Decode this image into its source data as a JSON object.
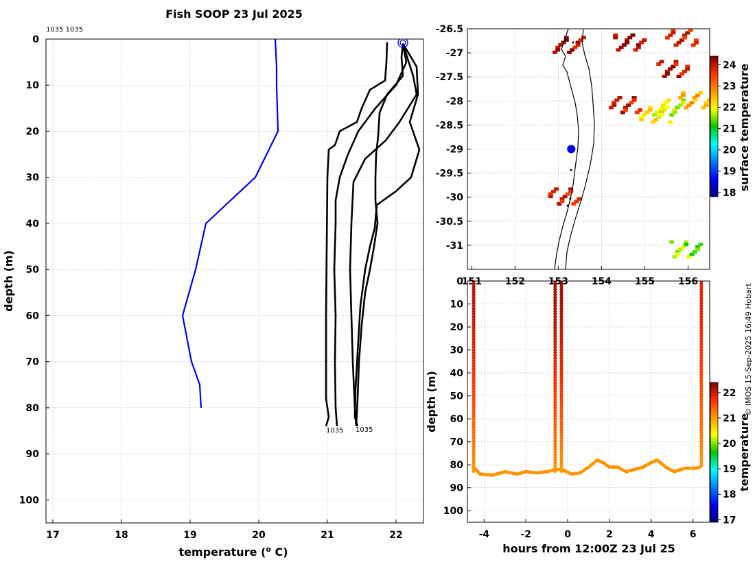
{
  "chart_data": [
    {
      "type": "line",
      "title": "Fish SOOP 23 Jul 2025",
      "subtitle": "1035 1035",
      "xlabel": "temperature (o C)",
      "xlabel_main": "temperature (",
      "xlabel_sup": "o",
      "xlabel_end": " C)",
      "ylabel": "depth (m)",
      "xlim": [
        16.9,
        22.4
      ],
      "ylim": [
        105,
        0
      ],
      "xticks": [
        "17",
        "18",
        "19",
        "20",
        "21",
        "22"
      ],
      "xtick_values": [
        17,
        18,
        19,
        20,
        21,
        22
      ],
      "yticks": [
        "0",
        "10",
        "20",
        "30",
        "40",
        "50",
        "60",
        "70",
        "80",
        "90",
        "100"
      ],
      "ytick_values": [
        0,
        10,
        20,
        30,
        40,
        50,
        60,
        70,
        80,
        90,
        100
      ],
      "grid": true,
      "series": [
        {
          "color": "#0000ee",
          "points": [
            [
              20.24,
              0
            ],
            [
              20.26,
              6
            ],
            [
              20.26,
              10
            ],
            [
              20.28,
              20
            ],
            [
              19.95,
              30
            ],
            [
              19.23,
              40
            ],
            [
              19.08,
              50
            ],
            [
              18.89,
              60
            ],
            [
              19.02,
              70
            ],
            [
              19.14,
              75
            ],
            [
              19.16,
              80
            ]
          ]
        },
        {
          "color": "#000000",
          "points": [
            [
              21.87,
              0.7
            ],
            [
              21.86,
              5
            ],
            [
              21.84,
              9
            ],
            [
              21.62,
              11
            ],
            [
              21.5,
              15
            ],
            [
              21.43,
              18
            ],
            [
              21.18,
              20
            ],
            [
              21.11,
              23
            ],
            [
              21.02,
              24
            ],
            [
              21.0,
              30
            ],
            [
              20.99,
              45
            ],
            [
              20.98,
              60
            ],
            [
              20.98,
              78
            ],
            [
              21.02,
              82
            ],
            [
              20.98,
              84
            ]
          ]
        },
        {
          "color": "#000000",
          "points": [
            [
              22.1,
              1
            ],
            [
              22.15,
              5
            ],
            [
              22.0,
              10
            ],
            [
              21.7,
              15
            ],
            [
              21.45,
              20
            ],
            [
              21.3,
              25
            ],
            [
              21.18,
              30
            ],
            [
              21.12,
              35
            ],
            [
              21.12,
              40
            ],
            [
              21.1,
              50
            ],
            [
              21.12,
              60
            ],
            [
              21.11,
              70
            ],
            [
              21.12,
              80
            ],
            [
              21.14,
              84
            ]
          ]
        },
        {
          "color": "#000000",
          "points": [
            [
              22.1,
              1
            ],
            [
              22.25,
              8
            ],
            [
              22.3,
              12
            ],
            [
              22.05,
              18
            ],
            [
              21.85,
              22
            ],
            [
              21.55,
              26
            ],
            [
              21.38,
              31
            ],
            [
              21.35,
              40
            ],
            [
              21.33,
              50
            ],
            [
              21.35,
              60
            ],
            [
              21.37,
              70
            ],
            [
              21.4,
              80
            ],
            [
              21.42,
              84
            ]
          ]
        },
        {
          "color": "#000000",
          "points": [
            [
              22.1,
              1
            ],
            [
              22.3,
              6
            ],
            [
              22.32,
              12
            ],
            [
              22.2,
              18
            ],
            [
              22.34,
              24
            ],
            [
              22.22,
              30
            ],
            [
              22.0,
              33
            ],
            [
              21.72,
              36
            ],
            [
              21.69,
              41
            ],
            [
              21.62,
              45
            ],
            [
              21.55,
              50
            ],
            [
              21.48,
              58
            ],
            [
              21.44,
              68
            ],
            [
              21.41,
              76
            ],
            [
              21.4,
              82
            ],
            [
              21.44,
              84
            ]
          ]
        },
        {
          "color": "#000000",
          "points": [
            [
              22.1,
              1
            ],
            [
              22.08,
              4
            ],
            [
              22.1,
              8
            ],
            [
              21.87,
              12
            ],
            [
              21.76,
              16
            ],
            [
              21.74,
              21
            ],
            [
              21.71,
              25
            ],
            [
              21.7,
              30
            ],
            [
              21.7,
              35
            ],
            [
              21.73,
              40
            ],
            [
              21.68,
              45
            ],
            [
              21.62,
              50
            ],
            [
              21.55,
              55
            ],
            [
              21.5,
              62
            ],
            [
              21.46,
              70
            ],
            [
              21.44,
              78
            ],
            [
              21.42,
              84
            ]
          ]
        }
      ],
      "marker": {
        "x": 22.1,
        "y": 0.8,
        "color": "#0000ee",
        "label": "circle"
      },
      "annotations": [
        "1035",
        "1035"
      ]
    },
    {
      "type": "heatmap",
      "xlim": [
        150.9,
        156.5
      ],
      "ylim": [
        -31.5,
        -26.5
      ],
      "xticks": [
        "151",
        "152",
        "153",
        "154",
        "155",
        "156"
      ],
      "xtick_values": [
        151,
        152,
        153,
        154,
        155,
        156
      ],
      "yticks": [
        "-26.5",
        "-27",
        "-27.5",
        "-28",
        "-28.5",
        "-29",
        "-29.5",
        "-30",
        "-30.5",
        "-31"
      ],
      "ytick_values": [
        -26.5,
        -27,
        -27.5,
        -28,
        -28.5,
        -29,
        -29.5,
        -30,
        -30.5,
        -31
      ],
      "colorbar_label": "surface temperature",
      "colorbar_ticks": [
        "24",
        "23",
        "22",
        "21",
        "20",
        "19",
        "18"
      ],
      "colorbar_range": [
        17.8,
        24.4
      ],
      "ship_position": {
        "lon": 153.3,
        "lat": -29.0,
        "color": "#0000ee"
      },
      "patches": [
        {
          "lon": 154.6,
          "lat": -26.75,
          "temp": 24.2
        },
        {
          "lon": 155.8,
          "lat": -26.65,
          "temp": 23.8
        },
        {
          "lon": 153.2,
          "lat": -26.8,
          "temp": 24.1
        },
        {
          "lon": 155.6,
          "lat": -27.3,
          "temp": 24.0
        },
        {
          "lon": 154.5,
          "lat": -28.05,
          "temp": 23.9
        },
        {
          "lon": 155.5,
          "lat": -28.1,
          "temp": 21.8
        },
        {
          "lon": 156.1,
          "lat": -27.95,
          "temp": 22.6
        },
        {
          "lon": 155.2,
          "lat": -28.25,
          "temp": 22.1
        },
        {
          "lon": 155.9,
          "lat": -31.05,
          "temp": 21.5
        },
        {
          "lon": 153.1,
          "lat": -29.95,
          "temp": 23.8
        }
      ]
    },
    {
      "type": "scatter",
      "xlabel": "hours from 12:00Z 23 Jul 25",
      "ylabel": "depth (m)",
      "xlim": [
        -4.8,
        6.8
      ],
      "ylim": [
        105,
        0
      ],
      "xticks": [
        "-4",
        "-2",
        "0",
        "2",
        "4",
        "6"
      ],
      "xtick_values": [
        -4,
        -2,
        0,
        2,
        4,
        6
      ],
      "yticks": [
        "0",
        "10",
        "20",
        "30",
        "40",
        "50",
        "60",
        "70",
        "80",
        "90",
        "100"
      ],
      "ytick_values": [
        0,
        10,
        20,
        30,
        40,
        50,
        60,
        70,
        80,
        90,
        100
      ],
      "colorbar_label": "temperature",
      "colorbar_ticks": [
        "22",
        "21",
        "20",
        "19",
        "18",
        "17"
      ],
      "colorbar_range": [
        16.9,
        22.4
      ],
      "casts": [
        {
          "x": -4.5,
          "depth": 84,
          "temp_top": 22.1,
          "temp_bottom": 21.0
        },
        {
          "x": -0.6,
          "depth": 83,
          "temp_top": 22.2,
          "temp_bottom": 21.0
        },
        {
          "x": -0.3,
          "depth": 83,
          "temp_top": 22.2,
          "temp_bottom": 21.0
        },
        {
          "x": 6.4,
          "depth": 81,
          "temp_top": 21.9,
          "temp_bottom": 21.0
        }
      ],
      "tow_track": [
        [
          -4.5,
          81
        ],
        [
          -4.2,
          84
        ],
        [
          -3.6,
          84.5
        ],
        [
          -3.0,
          83
        ],
        [
          -2.4,
          84
        ],
        [
          -2.0,
          83
        ],
        [
          -1.5,
          83.5
        ],
        [
          -1.0,
          83
        ],
        [
          -0.6,
          82
        ],
        [
          -0.3,
          82
        ],
        [
          0.2,
          84
        ],
        [
          0.6,
          83.5
        ],
        [
          1.0,
          81
        ],
        [
          1.4,
          78
        ],
        [
          1.7,
          79
        ],
        [
          2.0,
          81
        ],
        [
          2.4,
          81
        ],
        [
          2.8,
          83
        ],
        [
          3.2,
          82
        ],
        [
          3.6,
          81
        ],
        [
          4.0,
          79
        ],
        [
          4.3,
          78
        ],
        [
          4.7,
          81
        ],
        [
          5.1,
          83
        ],
        [
          5.6,
          81.5
        ],
        [
          6.1,
          81.5
        ],
        [
          6.4,
          81
        ]
      ]
    }
  ],
  "copyright": "© IMOS 15-Sep-2025 16:49 Hobart"
}
